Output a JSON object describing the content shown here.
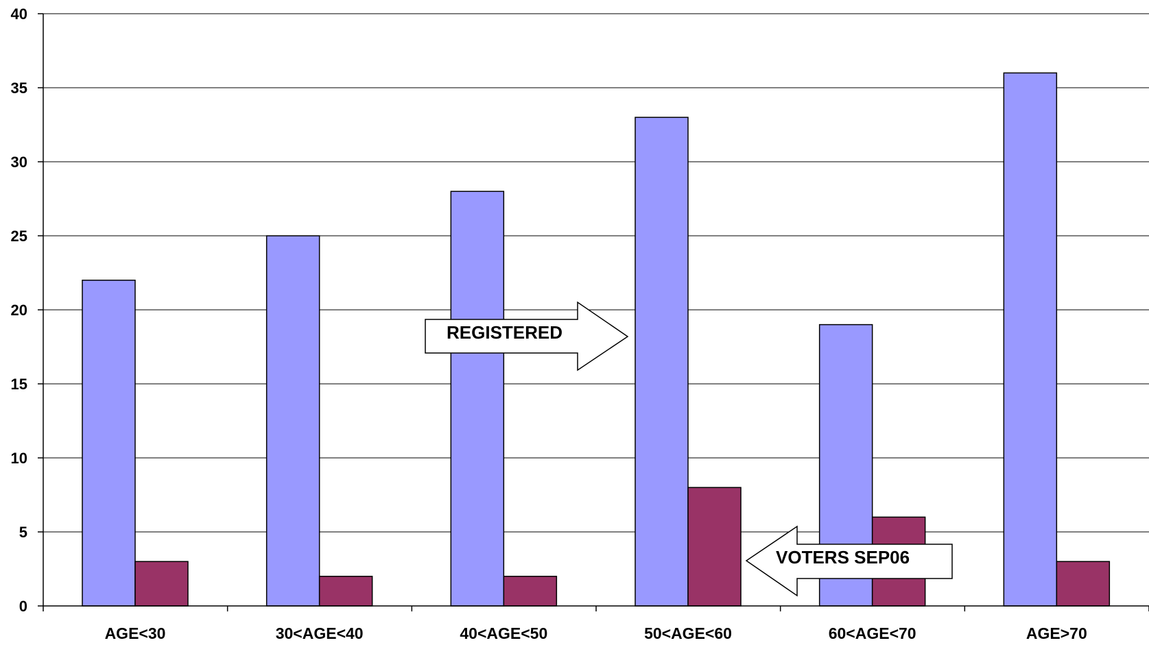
{
  "chart_data": {
    "type": "bar",
    "categories": [
      "AGE<30",
      "30<AGE<40",
      "40<AGE<50",
      "50<AGE<60",
      "60<AGE<70",
      "AGE>70"
    ],
    "series": [
      {
        "values": [
          22,
          25,
          28,
          33,
          19,
          36
        ],
        "color": "#9999ff"
      },
      {
        "values": [
          3,
          2,
          2,
          8,
          6,
          3
        ],
        "color": "#993366"
      }
    ],
    "ylim": [
      0,
      40
    ],
    "yticks": [
      "0",
      "5",
      "10",
      "15",
      "20",
      "25",
      "30",
      "35",
      "40"
    ],
    "grid": true,
    "annotations": [
      {
        "text": "REGISTERED",
        "direction": "right",
        "points_to": "50<AGE<60"
      },
      {
        "text": "VOTERS SEP06",
        "direction": "left",
        "points_to": "50<AGE<60"
      }
    ]
  }
}
